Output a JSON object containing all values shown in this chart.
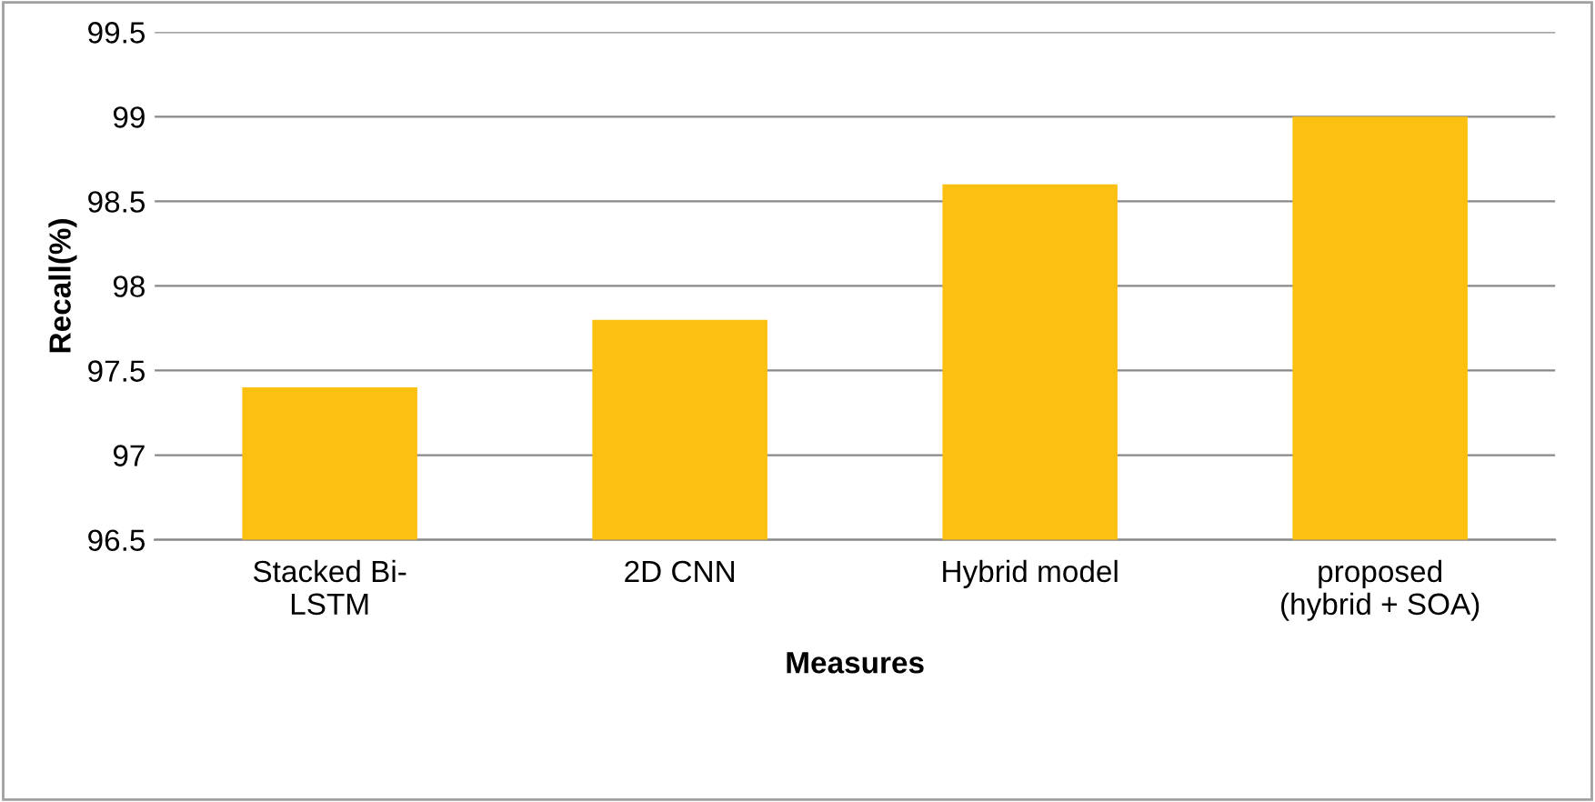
{
  "chart_data": {
    "type": "bar",
    "categories": [
      "Stacked Bi-\nLSTM",
      "2D CNN",
      "Hybrid model",
      "proposed\n(hybrid + SOA)"
    ],
    "values": [
      97.4,
      97.8,
      98.6,
      99.0
    ],
    "color": "#fcc010",
    "xlabel": "Measures",
    "ylabel": "Recall(%)",
    "ylim": [
      96.5,
      99.5
    ],
    "yticks": [
      96.5,
      97,
      97.5,
      98,
      98.5,
      99,
      99.5
    ],
    "grid": "y",
    "legend": false
  }
}
